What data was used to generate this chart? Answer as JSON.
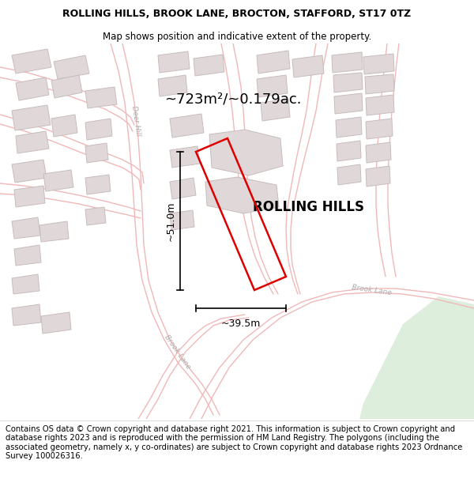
{
  "title_line1": "ROLLING HILLS, BROOK LANE, BROCTON, STAFFORD, ST17 0TZ",
  "title_line2": "Map shows position and indicative extent of the property.",
  "property_label": "ROLLING HILLS",
  "area_label": "~723m²/~0.179ac.",
  "dim_width": "~39.5m",
  "dim_height": "~51.0m",
  "footer_text": "Contains OS data © Crown copyright and database right 2021. This information is subject to Crown copyright and database rights 2023 and is reproduced with the permission of HM Land Registry. The polygons (including the associated geometry, namely x, y co-ordinates) are subject to Crown copyright and database rights 2023 Ordnance Survey 100026316.",
  "map_bg": "#ffffff",
  "road_color": "#f0b8b8",
  "building_fill": "#e0d8d8",
  "building_edge": "#c8bcbc",
  "green_area": "#ddeedd",
  "red_polygon_color": "#dd0000",
  "title_fontsize": 9,
  "subtitle_fontsize": 8.5,
  "label_fontsize": 12,
  "area_fontsize": 13,
  "dim_fontsize": 9,
  "footer_fontsize": 7.2,
  "road_label_fontsize": 6.5,
  "road_lw": 1.0
}
